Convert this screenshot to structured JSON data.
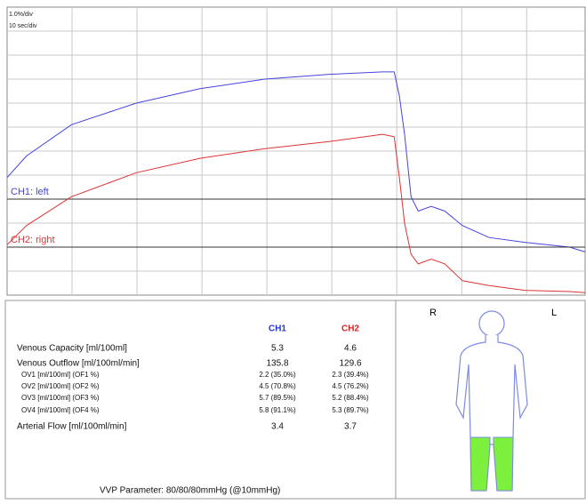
{
  "chart_data": {
    "type": "line",
    "scale_labels": [
      "1.0%/div",
      "10 sec/div"
    ],
    "x": [
      0,
      3,
      9.9,
      19.9,
      29.7,
      39.7,
      49.6,
      57.8,
      59.6,
      60.4,
      61.2,
      62.2,
      63.3,
      65.3,
      67.4,
      70.1,
      74.2,
      79.7,
      86.6,
      89
    ],
    "series": [
      {
        "name": "CH1: left",
        "color": "#4444dd",
        "baseline": 4,
        "values": [
          4.9,
          5.8,
          7.1,
          8.0,
          8.6,
          9.0,
          9.2,
          9.3,
          9.3,
          8.3,
          6.7,
          4.1,
          3.5,
          3.7,
          3.5,
          2.9,
          2.4,
          2.2,
          2.0,
          1.8
        ]
      },
      {
        "name": "CH2: right",
        "color": "#dd3333",
        "baseline": 2,
        "values": [
          2.1,
          2.9,
          4.1,
          5.1,
          5.7,
          6.1,
          6.4,
          6.7,
          6.6,
          4.9,
          3.0,
          1.7,
          1.3,
          1.5,
          1.3,
          0.6,
          0.4,
          0.2,
          0.15,
          0.1
        ]
      }
    ],
    "xlim": [
      0,
      89
    ],
    "ylim": [
      0,
      12
    ],
    "xticks": [
      10,
      20,
      30,
      40,
      50,
      60,
      70,
      80
    ],
    "yticks": [
      1,
      2,
      3,
      4,
      5,
      6,
      7,
      8,
      9,
      10,
      11
    ],
    "grid": true
  },
  "results": {
    "columns": [
      "CH1",
      "CH2"
    ],
    "rows": [
      [
        "Venous Capacity [ml/100ml]",
        "5.3",
        "4.6"
      ],
      [
        "Venous Outflow [ml/100ml/min]",
        "135.8",
        "129.6"
      ],
      [
        "OV1 [ml/100ml] (OF1 %)",
        "2.2 (35.0%)",
        "2.3 (39.4%)"
      ],
      [
        "OV2 [ml/100ml] (OF2 %)",
        "4.5 (70.8%)",
        "4.5 (76.2%)"
      ],
      [
        "OV3 [ml/100ml] (OF3 %)",
        "5.7 (89.5%)",
        "5.2 (88.4%)"
      ],
      [
        "OV4 [ml/100ml] (OF4 %)",
        "5.8 (91.1%)",
        "5.3 (89.7%)"
      ],
      [
        "Arterial Flow [ml/100ml/min]",
        "3.4",
        "3.7"
      ]
    ],
    "footer": "VVP Parameter: 80/80/80mmHg (@10mmHg)"
  },
  "figure": {
    "right_label": "R",
    "left_label": "L"
  }
}
